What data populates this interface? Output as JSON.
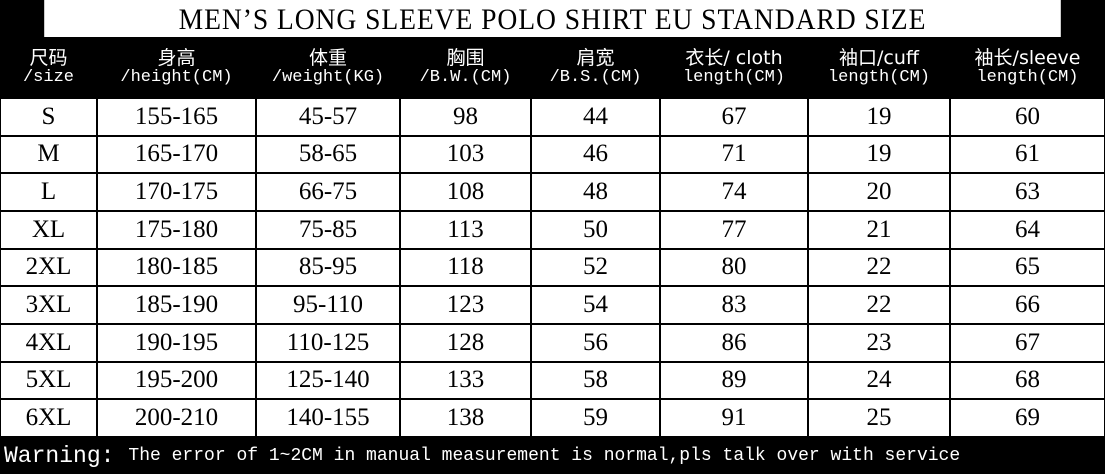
{
  "title": "MEN’S LONG SLEEVE POLO SHIRT EU STANDARD SIZE",
  "table": {
    "header": [
      [
        "尺码",
        "/size"
      ],
      [
        "身高",
        "/height(CM)"
      ],
      [
        "体重",
        "/weight(KG)"
      ],
      [
        "胸围",
        "/B.W.(CM)"
      ],
      [
        "肩宽",
        "/B.S.(CM)"
      ],
      [
        "衣长/ cloth",
        "length(CM)"
      ],
      [
        "袖口/cuff",
        "length(CM)"
      ],
      [
        "袖长/sleeve",
        "length(CM)"
      ]
    ],
    "rows": [
      [
        "S",
        "155-165",
        "45-57",
        "98",
        "44",
        "67",
        "19",
        "60"
      ],
      [
        "M",
        "165-170",
        "58-65",
        "103",
        "46",
        "71",
        "19",
        "61"
      ],
      [
        "L",
        "170-175",
        "66-75",
        "108",
        "48",
        "74",
        "20",
        "63"
      ],
      [
        "XL",
        "175-180",
        "75-85",
        "113",
        "50",
        "77",
        "21",
        "64"
      ],
      [
        "2XL",
        "180-185",
        "85-95",
        "118",
        "52",
        "80",
        "22",
        "65"
      ],
      [
        "3XL",
        "185-190",
        "95-110",
        "123",
        "54",
        "83",
        "22",
        "66"
      ],
      [
        "4XL",
        "190-195",
        "110-125",
        "128",
        "56",
        "86",
        "23",
        "67"
      ],
      [
        "5XL",
        "195-200",
        "125-140",
        "133",
        "58",
        "89",
        "24",
        "68"
      ],
      [
        "6XL",
        "200-210",
        "140-155",
        "138",
        "59",
        "91",
        "25",
        "69"
      ]
    ]
  },
  "footer": {
    "label": "Warning:",
    "text": "The error of 1~2CM in manual measurement is normal,pls talk over with service"
  }
}
